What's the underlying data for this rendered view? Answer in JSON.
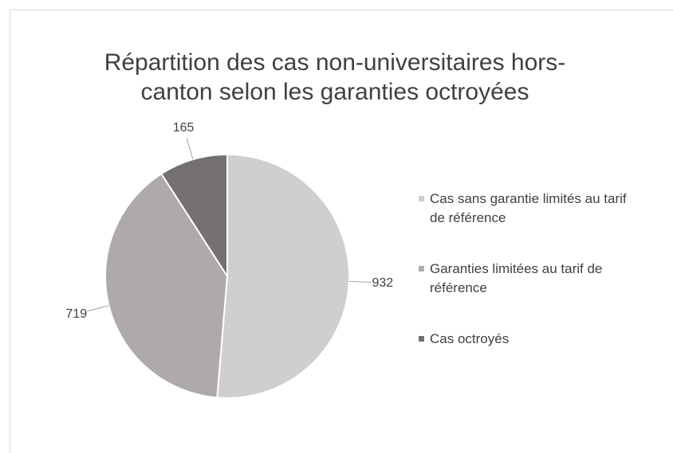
{
  "chart_data": {
    "type": "pie",
    "title": [
      "Répartition des cas non-universitaires hors-",
      "canton selon les garanties octroyées"
    ],
    "categories": [
      "Cas sans garantie limités au tarif de référence",
      "Garanties limitées au tarif de référence",
      "Cas octroyés"
    ],
    "values": [
      932,
      719,
      165
    ],
    "colors": [
      "#d0cece",
      "#aeaaaa",
      "#767171"
    ],
    "legend": "right"
  }
}
